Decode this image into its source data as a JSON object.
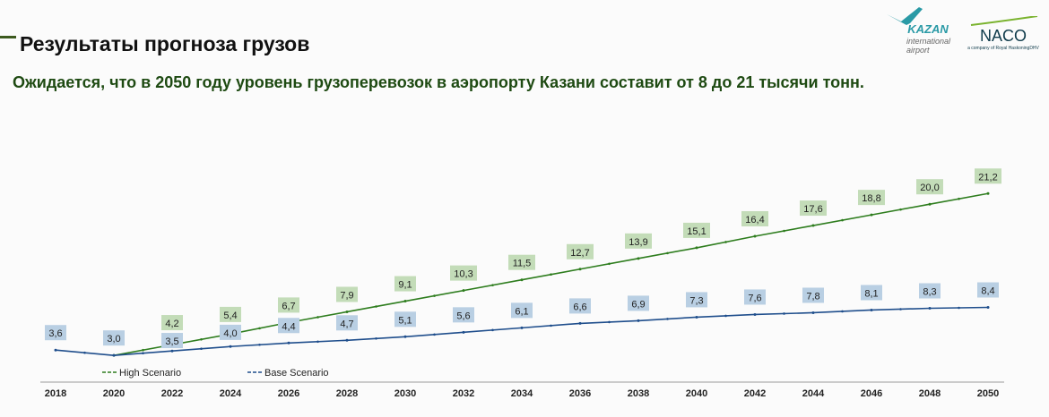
{
  "header": {
    "title": "Результаты прогноза грузов",
    "subtitle": "Ожидается, что в 2050 году уровень грузоперевозок в аэропорту Казани составит от 8 до 21 тысячи тонн."
  },
  "logos": {
    "kazan": {
      "name": "KAZAN",
      "line1": "international",
      "line2": "airport"
    },
    "naco": {
      "name": "NACO",
      "tagline": "a company of Royal HaskoningDHV"
    }
  },
  "chart_data": {
    "type": "line",
    "x": [
      2018,
      2020,
      2022,
      2024,
      2026,
      2028,
      2030,
      2032,
      2034,
      2036,
      2038,
      2040,
      2042,
      2044,
      2046,
      2048,
      2050
    ],
    "series": [
      {
        "name": "High Scenario",
        "color": "#2e7d1e",
        "label_bg": "#c3dcb8",
        "values": [
          3.6,
          3.0,
          4.2,
          5.4,
          6.7,
          7.9,
          9.1,
          10.3,
          11.5,
          12.7,
          13.9,
          15.1,
          16.4,
          17.6,
          18.8,
          20.0,
          21.2
        ],
        "labels": [
          null,
          null,
          "4,2",
          "5,4",
          "6,7",
          "7,9",
          "9,1",
          "10,3",
          "11,5",
          "12,7",
          "13,9",
          "15,1",
          "16,4",
          "17,6",
          "18,8",
          "20,0",
          "21,2"
        ]
      },
      {
        "name": "Base Scenario",
        "color": "#1f4e8c",
        "label_bg": "#b9cfe3",
        "values": [
          3.6,
          3.0,
          3.5,
          4.0,
          4.4,
          4.7,
          5.1,
          5.6,
          6.1,
          6.6,
          6.9,
          7.3,
          7.6,
          7.8,
          8.1,
          8.3,
          8.4
        ],
        "labels": [
          "3,6",
          "3,0",
          "3,5",
          "4,0",
          "4,4",
          "4,7",
          "5,1",
          "5,6",
          "6,1",
          "6,6",
          "6,9",
          "7,3",
          "7,6",
          "7,8",
          "8,1",
          "8,3",
          "8,4"
        ]
      }
    ],
    "xlabel": "",
    "ylabel": "",
    "ylim": [
      0,
      22
    ],
    "grid": false,
    "legend": "bottom"
  }
}
